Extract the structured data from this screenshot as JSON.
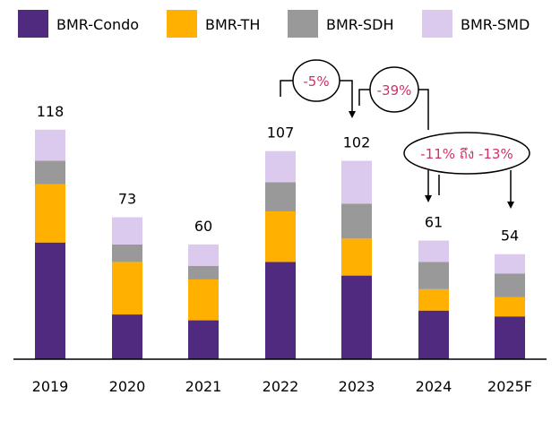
{
  "chart_data": {
    "type": "bar",
    "stacked": true,
    "categories": [
      "2019",
      "2020",
      "2021",
      "2022",
      "2023",
      "2024",
      "2025F"
    ],
    "totals": [
      "118",
      "73",
      "60",
      "107",
      "102",
      "61",
      "54"
    ],
    "series": [
      {
        "name": "BMR-Condo",
        "color": "#4f2a7f",
        "values": [
          60,
          23,
          20,
          50,
          43,
          25,
          22
        ]
      },
      {
        "name": "BMR-TH",
        "color": "#ffb000",
        "values": [
          30,
          27,
          21,
          26,
          19,
          11,
          10
        ]
      },
      {
        "name": "BMR-SDH",
        "color": "#999999",
        "values": [
          12,
          9,
          7,
          15,
          18,
          14,
          12
        ]
      },
      {
        "name": "BMR-SMD",
        "color": "#dcc9ee",
        "values": [
          16,
          14,
          11,
          16,
          22,
          11,
          10
        ]
      }
    ],
    "ylim": [
      0,
      140
    ],
    "grid": false,
    "legend_position": "top",
    "annotations": [
      {
        "text": "-5%",
        "from": "2022",
        "to": "2023",
        "color": "#d12f6b"
      },
      {
        "text": "-39%",
        "from": "2023",
        "to": "2024",
        "color": "#d12f6b"
      },
      {
        "text": "-11% ถึง -13%",
        "targets": [
          "2024",
          "2025F"
        ],
        "color": "#d12f6b"
      }
    ]
  }
}
